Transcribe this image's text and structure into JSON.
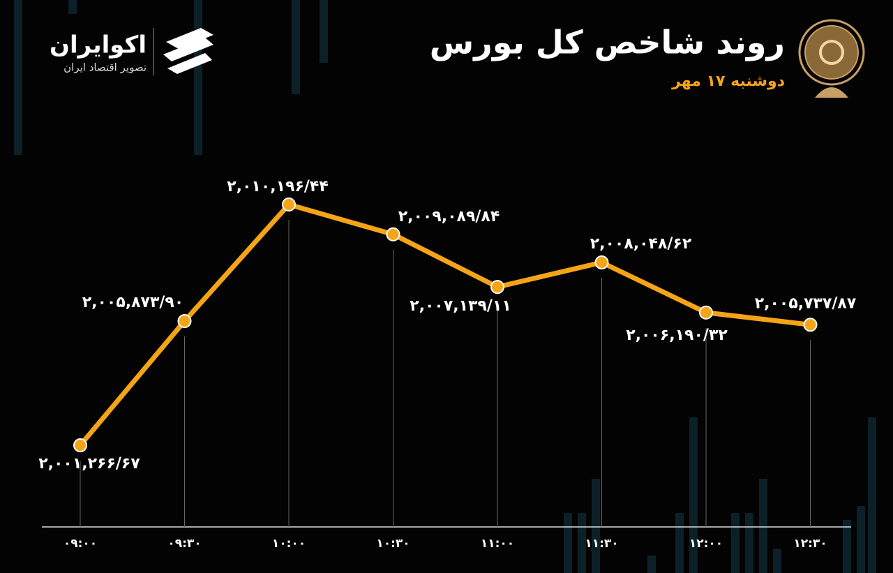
{
  "brand": {
    "name": "اکوایران",
    "tagline": "تصویر اقتصاد ایران"
  },
  "chart_data": {
    "type": "line",
    "title": "روند شاخص کل بورس",
    "subtitle": "دوشنبه ۱۷ مهر",
    "categories": [
      "۰۹:۰۰",
      "۰۹:۳۰",
      "۱۰:۰۰",
      "۱۰:۳۰",
      "۱۱:۰۰",
      "۱۱:۳۰",
      "۱۲:۰۰",
      "۱۲:۳۰"
    ],
    "series": [
      {
        "color": "#f5a416",
        "values": [
          2001266.67,
          2005873.9,
          2010196.44,
          2009089.84,
          2007139.11,
          2008048.62,
          2006190.32,
          2005737.87
        ],
        "value_labels": [
          "۲,۰۰۱,۲۶۶/۶۷",
          "۲,۰۰۵,۸۷۳/۹۰",
          "۲,۰۱۰,۱۹۶/۴۴",
          "۲,۰۰۹,۰۸۹/۸۴",
          "۲,۰۰۷,۱۳۹/۱۱",
          "۲,۰۰۸,۰۴۸/۶۲",
          "۲,۰۰۶,۱۹۰/۳۲",
          "۲,۰۰۵,۷۳۷/۸۷"
        ]
      }
    ],
    "ylim": [
      2000000,
      2011000
    ]
  }
}
